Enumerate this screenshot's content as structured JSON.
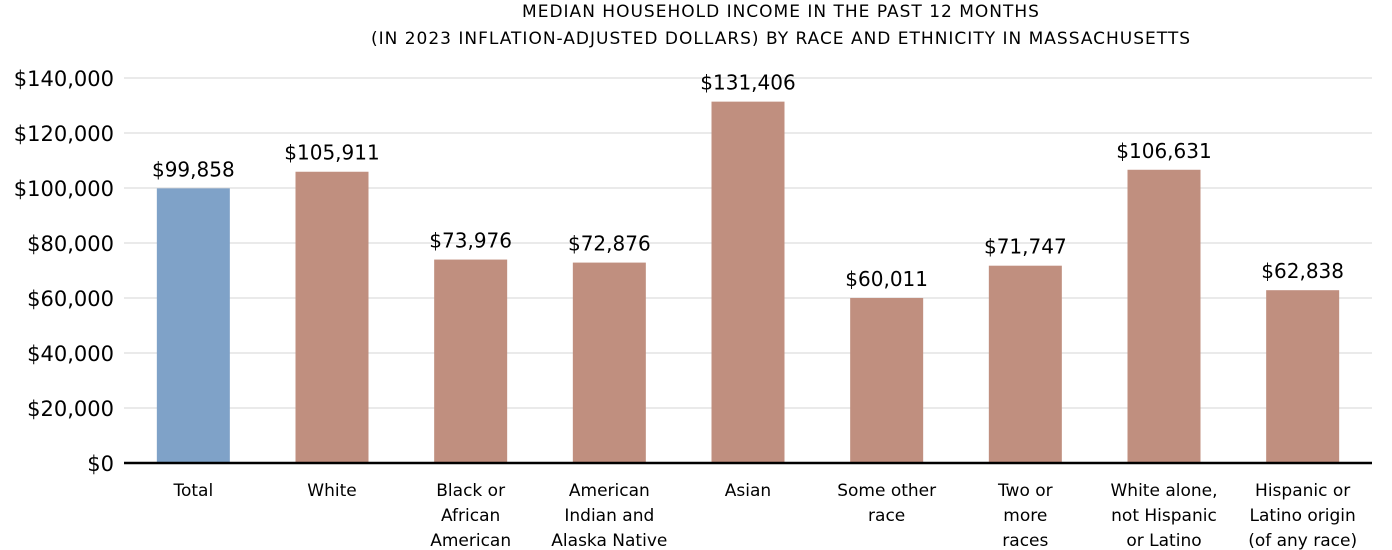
{
  "chart_data": {
    "type": "bar",
    "title": "MEDIAN HOUSEHOLD INCOME IN THE PAST 12 MONTHS",
    "subtitle": "(IN 2023 INFLATION-ADJUSTED DOLLARS) BY RACE AND ETHNICITY IN MASSACHUSETTS",
    "categories": [
      [
        "Total"
      ],
      [
        "White"
      ],
      [
        "Black or",
        "African",
        "American"
      ],
      [
        "American",
        "Indian and",
        "Alaska Native"
      ],
      [
        "Asian"
      ],
      [
        "Some other",
        "race"
      ],
      [
        "Two or",
        "more",
        "races"
      ],
      [
        "White alone,",
        "not Hispanic",
        "or Latino"
      ],
      [
        "Hispanic or",
        "Latino origin",
        "(of any race)"
      ]
    ],
    "values": [
      99858,
      105911,
      73976,
      72876,
      131406,
      60011,
      71747,
      106631,
      62838
    ],
    "data_labels": [
      "$99,858",
      "$105,911",
      "$73,976",
      "$72,876",
      "$131,406",
      "$60,011",
      "$71,747",
      "$106,631",
      "$62,838"
    ],
    "bar_colors": [
      "#7fa2c8",
      "#c08f7f",
      "#c08f7f",
      "#c08f7f",
      "#c08f7f",
      "#c08f7f",
      "#c08f7f",
      "#c08f7f",
      "#c08f7f"
    ],
    "ylim": [
      0,
      140000
    ],
    "yticks": [
      0,
      20000,
      40000,
      60000,
      80000,
      100000,
      120000,
      140000
    ],
    "ytick_labels": [
      "$0",
      "$20,000",
      "$40,000",
      "$60,000",
      "$80,000",
      "$100,000",
      "$120,000",
      "$140,000"
    ],
    "grid": true,
    "legend": "none"
  }
}
